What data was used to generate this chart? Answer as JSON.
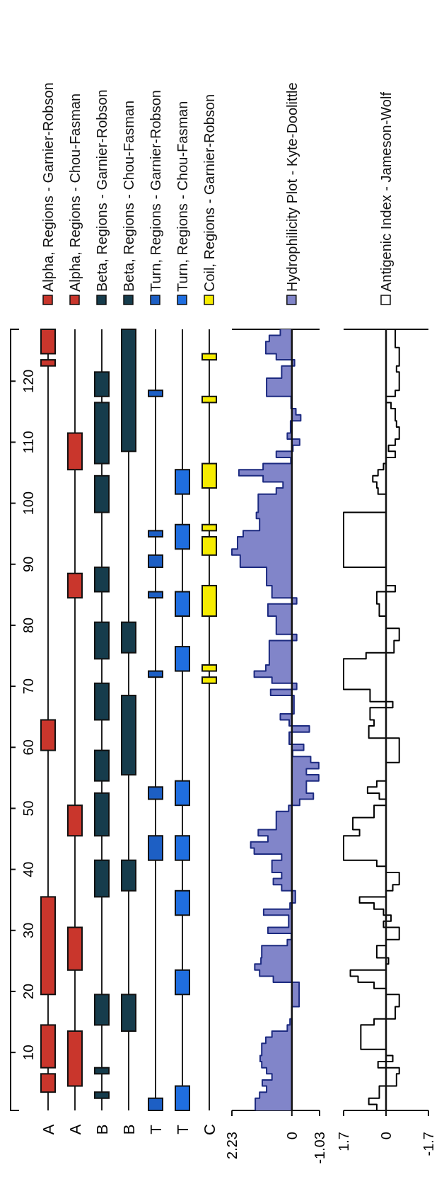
{
  "chart_data": [
    {
      "type": "bar",
      "categories": [
        "A",
        "A",
        "B",
        "B",
        "T",
        "T",
        "C"
      ],
      "ylim": [
        0.5,
        128.5
      ],
      "yticks": [
        10,
        20,
        30,
        40,
        50,
        60,
        70,
        80,
        90,
        100,
        110,
        120
      ],
      "grid": "x",
      "annotations": [
        "Alpha, Regions - Garnier-Robson",
        "Alpha, Regions - Chou-Fasman",
        "Beta, Regions - Garnier-Robson",
        "Beta, Regions - Chou-Fasman",
        "Turn, Regions - Garnier-Robson",
        "Turn, Regions - Chou-Fasman",
        "Coil, Regions - Garnier-Robson"
      ],
      "series": [
        {
          "colors": [
            "#c9362c",
            "#c9362c",
            "#163c4c",
            "#163c4c",
            "#1d5fc4",
            "#1f6ee0",
            "#f6ec00"
          ],
          "base": [
            3.5,
            4.5,
            2.5,
            13.5,
            0.5,
            0.5,
            70.5
          ],
          "values": [
            3,
            9,
            1,
            6,
            2,
            4,
            1
          ]
        },
        {
          "colors": [
            "#c9362c",
            "#c9362c",
            "#163c4c",
            "#163c4c",
            "#1d5fc4",
            "#1f6ee0",
            "#f6ec00"
          ],
          "base": [
            7.5,
            23.5,
            6.5,
            36.5,
            41.5,
            19.5,
            72.5
          ],
          "values": [
            7,
            7,
            1,
            5,
            4,
            4,
            1
          ]
        },
        {
          "colors": [
            "#c9362c",
            "#c9362c",
            "#163c4c",
            "#163c4c",
            "#1d5fc4",
            "#1f6ee0",
            "#f6ec00"
          ],
          "base": [
            19.5,
            45.5,
            14.5,
            55.5,
            51.5,
            32.5,
            81.5
          ],
          "values": [
            16,
            5,
            5,
            13,
            2,
            4,
            5
          ]
        },
        {
          "colors": [
            "#c9362c",
            "#c9362c",
            "#163c4c",
            "#163c4c",
            "#1d5fc4",
            "#1f6ee0",
            "#f6ec00"
          ],
          "base": [
            59.5,
            84.5,
            35.5,
            75.5,
            71.5,
            41.5,
            91.5
          ],
          "values": [
            5,
            4,
            6,
            5,
            1,
            4,
            3
          ]
        },
        {
          "colors": [
            "#c9362c",
            "#c9362c",
            "#163c4c",
            "#163c4c",
            "#1d5fc4",
            "#1f6ee0",
            "#f6ec00"
          ],
          "base": [
            122.5,
            105.5,
            45.5,
            108.5,
            84.5,
            50.5,
            95.5
          ],
          "values": [
            1,
            6,
            7,
            20,
            1,
            4,
            1
          ]
        },
        {
          "colors": [
            "#c9362c",
            null,
            "#163c4c",
            null,
            "#1d5fc4",
            "#1f6ee0",
            "#f6ec00"
          ],
          "base": [
            124.5,
            null,
            54.5,
            null,
            89.5,
            72.5,
            102.5
          ],
          "values": [
            4,
            null,
            5,
            null,
            2,
            4,
            4
          ]
        },
        {
          "colors": [
            null,
            null,
            "#163c4c",
            null,
            "#1d5fc4",
            "#1f6ee0",
            "#f6ec00"
          ],
          "base": [
            null,
            null,
            64.5,
            null,
            94.5,
            81.5,
            116.5
          ],
          "values": [
            null,
            null,
            6,
            null,
            1,
            4,
            1
          ]
        },
        {
          "colors": [
            null,
            null,
            "#163c4c",
            null,
            "#1d5fc4",
            "#1f6ee0",
            "#f6ec00"
          ],
          "base": [
            null,
            null,
            74.5,
            null,
            117.5,
            92.5,
            123.5
          ],
          "values": [
            null,
            null,
            6,
            null,
            1,
            4,
            1
          ]
        },
        {
          "colors": [
            null,
            null,
            "#163c4c",
            null,
            null,
            "#1f6ee0",
            null
          ],
          "base": [
            null,
            null,
            85.5,
            null,
            null,
            101.5,
            null
          ],
          "values": [
            null,
            null,
            4,
            null,
            null,
            4,
            null
          ]
        },
        {
          "colors": [
            null,
            null,
            "#163c4c",
            null,
            null,
            null,
            null
          ],
          "base": [
            null,
            null,
            98.5,
            null,
            null,
            null,
            null
          ],
          "values": [
            null,
            null,
            6,
            null,
            null,
            null,
            null
          ]
        },
        {
          "colors": [
            null,
            null,
            "#163c4c",
            null,
            null,
            null,
            null
          ],
          "base": [
            null,
            null,
            106.5,
            null,
            null,
            null,
            null
          ],
          "values": [
            null,
            null,
            10,
            null,
            null,
            null,
            null
          ]
        },
        {
          "colors": [
            null,
            null,
            "#163c4c",
            null,
            null,
            null,
            null
          ],
          "base": [
            null,
            null,
            117.5,
            null,
            null,
            null,
            null
          ],
          "values": [
            null,
            null,
            4,
            null,
            null,
            null,
            null
          ]
        }
      ]
    },
    {
      "type": "area",
      "orientation": "horizontal",
      "ylim": [
        0.5,
        128.5
      ],
      "xlim": [
        2.23,
        -1.03
      ],
      "xticks": [
        2.23,
        0,
        -1.03
      ],
      "tick_labels": "x",
      "legend": "right",
      "series": [
        {
          "name": "Hydrophilicity Plot - Kyte-Doolittle",
          "color": "#8185c9",
          "x": [
            0.5,
            2.5,
            3.5,
            4.5,
            5.5,
            6.5,
            7.5,
            8.5,
            9.5,
            11.5,
            12.5,
            13.5,
            14.5,
            15.5,
            17.5,
            21.5,
            22.5,
            23.5,
            24.5,
            25.5,
            27.5,
            28.5,
            29.5,
            30.5,
            32.5,
            33.5,
            34.5,
            36.5,
            37.5,
            38.5,
            39.5,
            41.5,
            42.5,
            43.5,
            44.5,
            45.5,
            46.5,
            49.5,
            50.5,
            51.5,
            52.5,
            54.5,
            55.5,
            56.5,
            57.5,
            58.5,
            59.5,
            60.5,
            62.5,
            63.5,
            64.5,
            65.5,
            68.5,
            69.5,
            70.5,
            71.5,
            72.5,
            73.5,
            77.5,
            78.5,
            81.5,
            83.5,
            84.5,
            86.5,
            89.5,
            91.5,
            92.5,
            94.5,
            95.5,
            97.5,
            98.5,
            101.5,
            102.5,
            103.5,
            104.5,
            105.5,
            106.5,
            107.5,
            108.5,
            109.5,
            110.5,
            111.5,
            113.5,
            114.5,
            115.5,
            117.5,
            120.5,
            122.5,
            123.5,
            124.5,
            126.5,
            127.5,
            128.5
          ],
          "values": [
            1.36,
            1.2,
            0.94,
            1.1,
            0.74,
            0.94,
            1.12,
            1.18,
            1.12,
            0.97,
            0.74,
            0.17,
            0.07,
            0,
            -0.27,
            0.69,
            1.2,
            1.38,
            1.15,
            1.12,
            0.17,
            0.02,
            0.89,
            0.12,
            1.05,
            0.07,
            -0.13,
            0.38,
            0.69,
            0.38,
            0.74,
            0.38,
            1.4,
            1.53,
            0.89,
            1.25,
            0.58,
            0.12,
            -0.29,
            -0.8,
            -0.54,
            -1.0,
            -0.54,
            -1.0,
            -0.7,
            -0.03,
            -0.44,
            0.1,
            -0.65,
            0.1,
            0.43,
            -0.08,
            0.79,
            -0.18,
            0.74,
            1.4,
            0.97,
            0.84,
            -0.18,
            0.58,
            0.89,
            -0.18,
            0.74,
            0.94,
            1.92,
            2.23,
            2.02,
            1.81,
            1.2,
            1.32,
            1.25,
            0.58,
            0.33,
            1.07,
            1.97,
            1.07,
            0.04,
            0.58,
            -0.04,
            -0.29,
            0.17,
            0.05,
            -0.33,
            -0.15,
            0.03,
            0.94,
            0.38,
            -0.1,
            0.58,
            0.97,
            0.84,
            0.43,
            0.43
          ]
        }
      ]
    },
    {
      "type": "step",
      "orientation": "horizontal",
      "ylim": [
        0.5,
        128.5
      ],
      "xlim": [
        1.7,
        -1.7
      ],
      "xticks": [
        1.7,
        0,
        -1.7
      ],
      "tick_labels": "x",
      "legend": "right",
      "series": [
        {
          "name": "Antigenic Index - Jameson-Wolf",
          "color": "#000000",
          "x": [
            0.5,
            1.5,
            2.5,
            4.5,
            6.5,
            7.5,
            8.5,
            9.5,
            10.5,
            14.5,
            15.5,
            17.5,
            19.5,
            20.5,
            21.5,
            22.5,
            23.5,
            24.5,
            25.5,
            27.5,
            28.5,
            30.5,
            31.5,
            32.5,
            33.5,
            34.5,
            35.5,
            36.5,
            37.5,
            39.5,
            40.5,
            41.5,
            45.5,
            46.5,
            48.5,
            50.5,
            51.5,
            52.5,
            53.5,
            54.5,
            57.5,
            61.5,
            63.5,
            64.5,
            66.5,
            67.5,
            69.5,
            74.5,
            75.5,
            77.5,
            79.5,
            81.5,
            83.5,
            85.5,
            86.5,
            89.5,
            98.5,
            101.5,
            102.5,
            103.5,
            104.5,
            105.5,
            106.5,
            107.5,
            108.5,
            109.5,
            110.5,
            112.5,
            113.5,
            115.5,
            116.5,
            117.5,
            118.5,
            121.5,
            122.5,
            125.5,
            128.5
          ],
          "values": [
            0.37,
            0.69,
            0.27,
            -0.42,
            -0.53,
            0.32,
            -0.27,
            0,
            1.01,
            0.48,
            -0.37,
            -0.53,
            0,
            0.48,
            1.12,
            1.43,
            0,
            -0.1,
            0.37,
            0,
            -0.53,
            0.1,
            -0.2,
            0.1,
            0.48,
            1.06,
            0,
            -0.27,
            -0.53,
            0,
            0.37,
            1.7,
            1.06,
            1.33,
            0.48,
            0,
            0.27,
            0.74,
            0.37,
            0,
            -0.53,
            0.69,
            0.48,
            0.64,
            -0.27,
            0.64,
            1.7,
            0.8,
            -0.32,
            -0.53,
            0,
            0.27,
            0.37,
            -0.37,
            0,
            1.7,
            0,
            0.32,
            0.37,
            0.53,
            0.32,
            0.1,
            0,
            -0.37,
            -0.1,
            -0.37,
            -0.53,
            -0.42,
            -0.37,
            -0.2,
            0,
            -0.37,
            -0.53,
            -0.42,
            -0.53,
            -0.37,
            -0.37
          ]
        }
      ]
    }
  ]
}
